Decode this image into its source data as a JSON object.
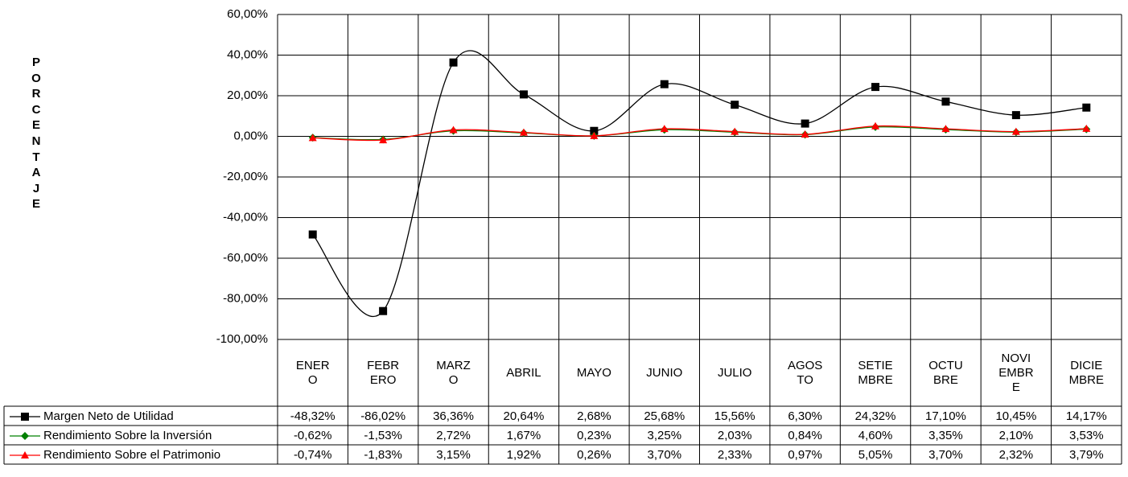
{
  "chart_data": {
    "type": "line",
    "axis_label": "PORCENTAJE",
    "categories": [
      "ENERO",
      "FEBRERO",
      "MARZO",
      "ABRIL",
      "MAYO",
      "JUNIO",
      "JULIO",
      "AGOSTO",
      "SETIEMBRE",
      "OCTUBRE",
      "NOVIEMBRE",
      "DICIEMBRE"
    ],
    "series": [
      {
        "name": "Margen Neto de Utilidad",
        "color": "#000000",
        "marker": "square",
        "values": [
          -48.32,
          -86.02,
          36.36,
          20.64,
          2.68,
          25.68,
          15.56,
          6.3,
          24.32,
          17.1,
          10.45,
          14.17
        ],
        "value_labels": [
          "-48,32%",
          "-86,02%",
          "36,36%",
          "20,64%",
          "2,68%",
          "25,68%",
          "15,56%",
          "6,30%",
          "24,32%",
          "17,10%",
          "10,45%",
          "14,17%"
        ]
      },
      {
        "name": "Rendimiento Sobre la Inversión",
        "color": "#008000",
        "marker": "diamond",
        "values": [
          -0.62,
          -1.53,
          2.72,
          1.67,
          0.23,
          3.25,
          2.03,
          0.84,
          4.6,
          3.35,
          2.1,
          3.53
        ],
        "value_labels": [
          "-0,62%",
          "-1,53%",
          "2,72%",
          "1,67%",
          "0,23%",
          "3,25%",
          "2,03%",
          "0,84%",
          "4,60%",
          "3,35%",
          "2,10%",
          "3,53%"
        ]
      },
      {
        "name": "Rendimiento Sobre el Patrimonio",
        "color": "#ff0000",
        "marker": "triangle",
        "values": [
          -0.74,
          -1.83,
          3.15,
          1.92,
          0.26,
          3.7,
          2.33,
          0.97,
          5.05,
          3.7,
          2.32,
          3.79
        ],
        "value_labels": [
          "-0,74%",
          "-1,83%",
          "3,15%",
          "1,92%",
          "0,26%",
          "3,70%",
          "2,33%",
          "0,97%",
          "5,05%",
          "3,70%",
          "2,32%",
          "3,79%"
        ]
      }
    ],
    "ylim": [
      -100,
      60
    ],
    "yticks": [
      {
        "value": -100,
        "label": "-100,00%"
      },
      {
        "value": -80,
        "label": "-80,00%"
      },
      {
        "value": -60,
        "label": "-60,00%"
      },
      {
        "value": -40,
        "label": "-40,00%"
      },
      {
        "value": -20,
        "label": "-20,00%"
      },
      {
        "value": 0,
        "label": "0,00%"
      },
      {
        "value": 20,
        "label": "20,00%"
      },
      {
        "value": 40,
        "label": "40,00%"
      },
      {
        "value": 60,
        "label": "60,00%"
      }
    ],
    "grid": true,
    "smooth": true
  }
}
